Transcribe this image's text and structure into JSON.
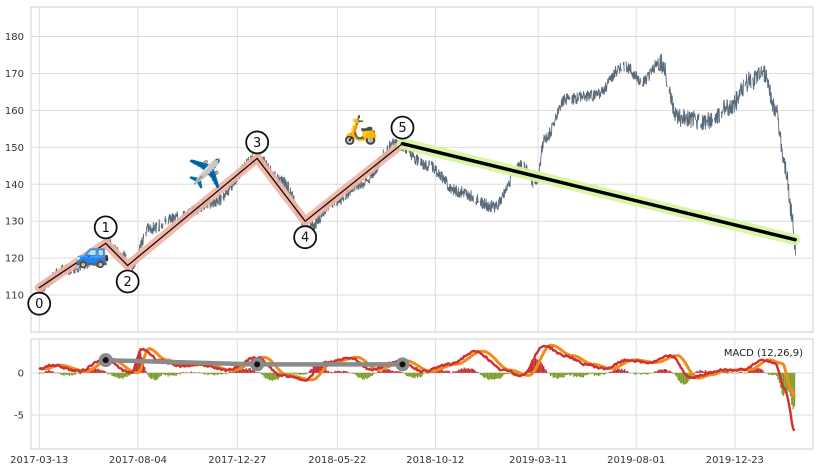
{
  "chart_data": [
    {
      "type": "line",
      "panel": "price",
      "ylim": [
        100,
        188
      ],
      "yticks": [
        110,
        120,
        130,
        140,
        150,
        160,
        170,
        180
      ],
      "grid": true,
      "price_anchors": [
        {
          "x": "2017-03-13",
          "y": 112
        },
        {
          "x": "2017-04-20",
          "y": 117
        },
        {
          "x": "2017-06-05",
          "y": 119
        },
        {
          "x": "2017-06-20",
          "y": 124
        },
        {
          "x": "2017-07-10",
          "y": 121
        },
        {
          "x": "2017-07-25",
          "y": 118
        },
        {
          "x": "2017-08-20",
          "y": 128
        },
        {
          "x": "2017-10-01",
          "y": 131
        },
        {
          "x": "2017-11-20",
          "y": 135
        },
        {
          "x": "2018-01-25",
          "y": 147
        },
        {
          "x": "2018-03-01",
          "y": 141
        },
        {
          "x": "2018-04-10",
          "y": 128
        },
        {
          "x": "2018-05-15",
          "y": 135
        },
        {
          "x": "2018-06-25",
          "y": 140
        },
        {
          "x": "2018-08-15",
          "y": 151
        },
        {
          "x": "2018-10-01",
          "y": 145
        },
        {
          "x": "2018-11-15",
          "y": 138
        },
        {
          "x": "2019-01-05",
          "y": 134
        },
        {
          "x": "2019-02-15",
          "y": 145
        },
        {
          "x": "2019-03-08",
          "y": 140
        },
        {
          "x": "2019-03-20",
          "y": 152
        },
        {
          "x": "2019-04-20",
          "y": 163
        },
        {
          "x": "2019-06-01",
          "y": 164
        },
        {
          "x": "2019-07-15",
          "y": 172
        },
        {
          "x": "2019-08-10",
          "y": 168
        },
        {
          "x": "2019-09-05",
          "y": 173
        },
        {
          "x": "2019-10-01",
          "y": 158
        },
        {
          "x": "2019-11-15",
          "y": 157
        },
        {
          "x": "2019-12-15",
          "y": 161
        },
        {
          "x": "2020-01-15",
          "y": 168
        },
        {
          "x": "2020-02-05",
          "y": 170
        },
        {
          "x": "2020-02-20",
          "y": 160
        },
        {
          "x": "2020-03-05",
          "y": 145
        },
        {
          "x": "2020-03-15",
          "y": 132
        },
        {
          "x": "2020-03-20",
          "y": 123
        }
      ],
      "wave_points": [
        {
          "label": "0",
          "x": "2017-03-13",
          "y": 112
        },
        {
          "label": "1",
          "x": "2017-06-18",
          "y": 124
        },
        {
          "label": "2",
          "x": "2017-07-20",
          "y": 118
        },
        {
          "label": "3",
          "x": "2018-01-25",
          "y": 147
        },
        {
          "label": "4",
          "x": "2018-04-05",
          "y": 130
        },
        {
          "label": "5",
          "x": "2018-08-25",
          "y": 151
        }
      ],
      "projection": [
        {
          "x": "2018-08-25",
          "y": 151
        },
        {
          "x": "2020-03-20",
          "y": 125
        }
      ],
      "emoji_markers": [
        {
          "glyph": "🚙",
          "name": "car",
          "x": "2017-05-30",
          "y": 121.5
        },
        {
          "glyph": "✈️",
          "name": "plane",
          "x": "2017-11-10",
          "y": 143
        },
        {
          "glyph": "🛵",
          "name": "scooter",
          "x": "2018-06-25",
          "y": 155
        }
      ]
    },
    {
      "type": "line",
      "panel": "macd",
      "legend": "MACD (12,26,9)",
      "legend_placement": "top-right",
      "ylim": [
        -9,
        4
      ],
      "yticks": [
        0,
        -5
      ],
      "xlim": [
        "2017-03-01",
        "2020-04-15"
      ],
      "xticks": [
        "2017-03-13",
        "2017-08-04",
        "2017-12-27",
        "2018-05-22",
        "2018-10-12",
        "2019-03-11",
        "2019-08-01",
        "2019-12-23"
      ],
      "grid": true,
      "macd_anchors": [
        {
          "x": "2017-03-13",
          "y": 0.5
        },
        {
          "x": "2017-04-01",
          "y": 0.9
        },
        {
          "x": "2017-05-10",
          "y": 0.2
        },
        {
          "x": "2017-06-15",
          "y": 1.6
        },
        {
          "x": "2017-07-25",
          "y": 0.0
        },
        {
          "x": "2017-08-10",
          "y": 2.8
        },
        {
          "x": "2017-09-05",
          "y": 1.5
        },
        {
          "x": "2017-10-01",
          "y": 0.8
        },
        {
          "x": "2017-11-01",
          "y": 1.0
        },
        {
          "x": "2017-12-10",
          "y": 0.3
        },
        {
          "x": "2018-01-25",
          "y": 1.8
        },
        {
          "x": "2018-03-01",
          "y": -0.3
        },
        {
          "x": "2018-04-05",
          "y": -0.8
        },
        {
          "x": "2018-05-05",
          "y": 1.2
        },
        {
          "x": "2018-06-10",
          "y": 1.8
        },
        {
          "x": "2018-07-10",
          "y": 0.4
        },
        {
          "x": "2018-08-20",
          "y": 1.4
        },
        {
          "x": "2018-09-25",
          "y": 0.2
        },
        {
          "x": "2018-11-01",
          "y": 1.0
        },
        {
          "x": "2018-12-10",
          "y": 2.5
        },
        {
          "x": "2019-01-20",
          "y": 0.3
        },
        {
          "x": "2019-02-15",
          "y": -0.3
        },
        {
          "x": "2019-03-20",
          "y": 3.2
        },
        {
          "x": "2019-04-20",
          "y": 2.0
        },
        {
          "x": "2019-05-20",
          "y": 1.0
        },
        {
          "x": "2019-06-15",
          "y": 0.5
        },
        {
          "x": "2019-07-20",
          "y": 1.5
        },
        {
          "x": "2019-08-20",
          "y": 1.2
        },
        {
          "x": "2019-09-20",
          "y": 2.0
        },
        {
          "x": "2019-10-20",
          "y": -0.6
        },
        {
          "x": "2019-11-10",
          "y": -0.2
        },
        {
          "x": "2019-12-01",
          "y": 0.3
        },
        {
          "x": "2020-01-05",
          "y": 0.4
        },
        {
          "x": "2020-02-01",
          "y": 1.5
        },
        {
          "x": "2020-02-20",
          "y": 1.1
        },
        {
          "x": "2020-03-05",
          "y": -2.0
        },
        {
          "x": "2020-03-20",
          "y": -7.0
        }
      ],
      "signal_lag_days": 10,
      "regression": [
        {
          "x": "2017-06-18",
          "y": 1.5
        },
        {
          "x": "2018-01-25",
          "y": 1.0
        },
        {
          "x": "2018-08-25",
          "y": 1.0
        }
      ],
      "colors": {
        "price": "#5a6a7a",
        "wave_band": "#f2b3a2",
        "wave_line": "#111111",
        "projection_band": "#d8f5a2",
        "projection_line": "#000000",
        "macd_line": "#d03030",
        "signal_line": "#f08c1e",
        "hist_positive": "#c0282a",
        "hist_negative": "#7a9a28",
        "regression": "#8a8a8a",
        "grid": "#dddddd",
        "axis_border": "#cccccc"
      }
    }
  ]
}
